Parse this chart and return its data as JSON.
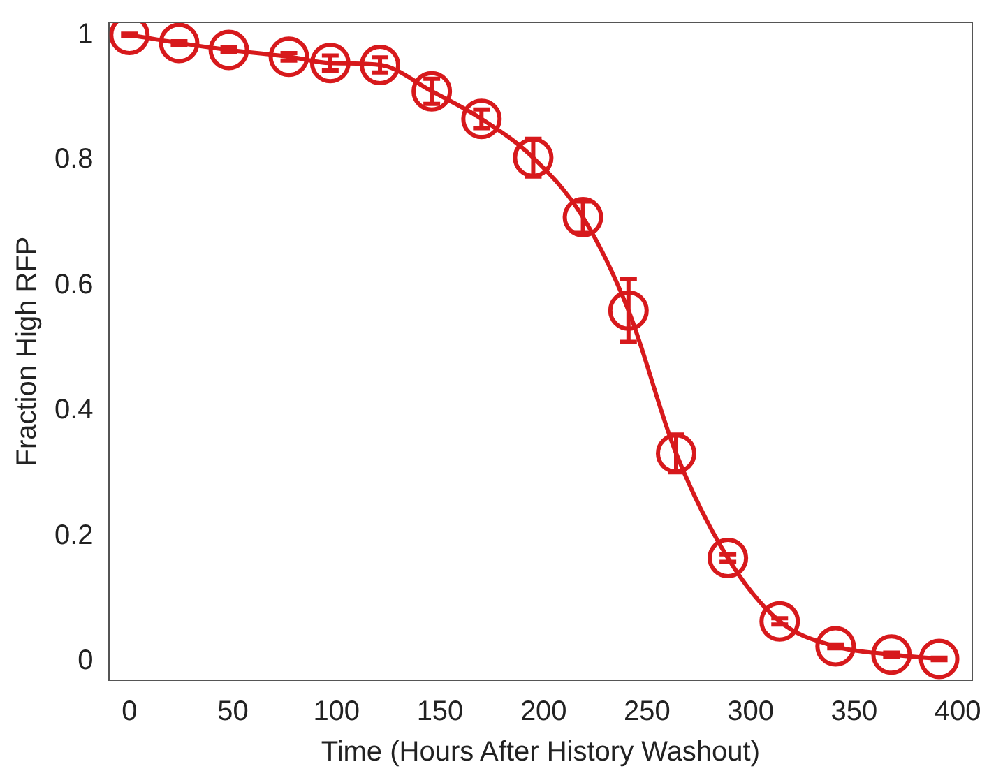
{
  "chart_data": {
    "type": "line",
    "xlabel": "Time (Hours After History Washout)",
    "ylabel": "Fraction High RFP",
    "x": [
      0,
      24,
      48,
      77,
      97,
      121,
      146,
      170,
      195,
      219,
      241,
      264,
      289,
      314,
      341,
      368,
      391
    ],
    "series": [
      {
        "color": "#d7191c",
        "values": [
          1.0,
          0.987,
          0.976,
          0.965,
          0.955,
          0.952,
          0.91,
          0.866,
          0.804,
          0.709,
          0.56,
          0.332,
          0.165,
          0.064,
          0.024,
          0.011,
          0.004
        ],
        "errors": [
          0.002,
          0.003,
          0.004,
          0.006,
          0.012,
          0.012,
          0.02,
          0.015,
          0.03,
          0.025,
          0.05,
          0.03,
          0.006,
          0.005,
          0.003,
          0.003,
          0.002
        ]
      }
    ],
    "xlim": [
      -10,
      407
    ],
    "xticks": [
      0,
      50,
      100,
      150,
      200,
      250,
      300,
      350,
      400
    ],
    "ylim": [
      -0.03,
      1.02
    ],
    "yticks": [
      0,
      0.2,
      0.4,
      0.6,
      0.8,
      1
    ],
    "marker": "circle",
    "line_style": "solid",
    "grid": false,
    "legend": false
  }
}
